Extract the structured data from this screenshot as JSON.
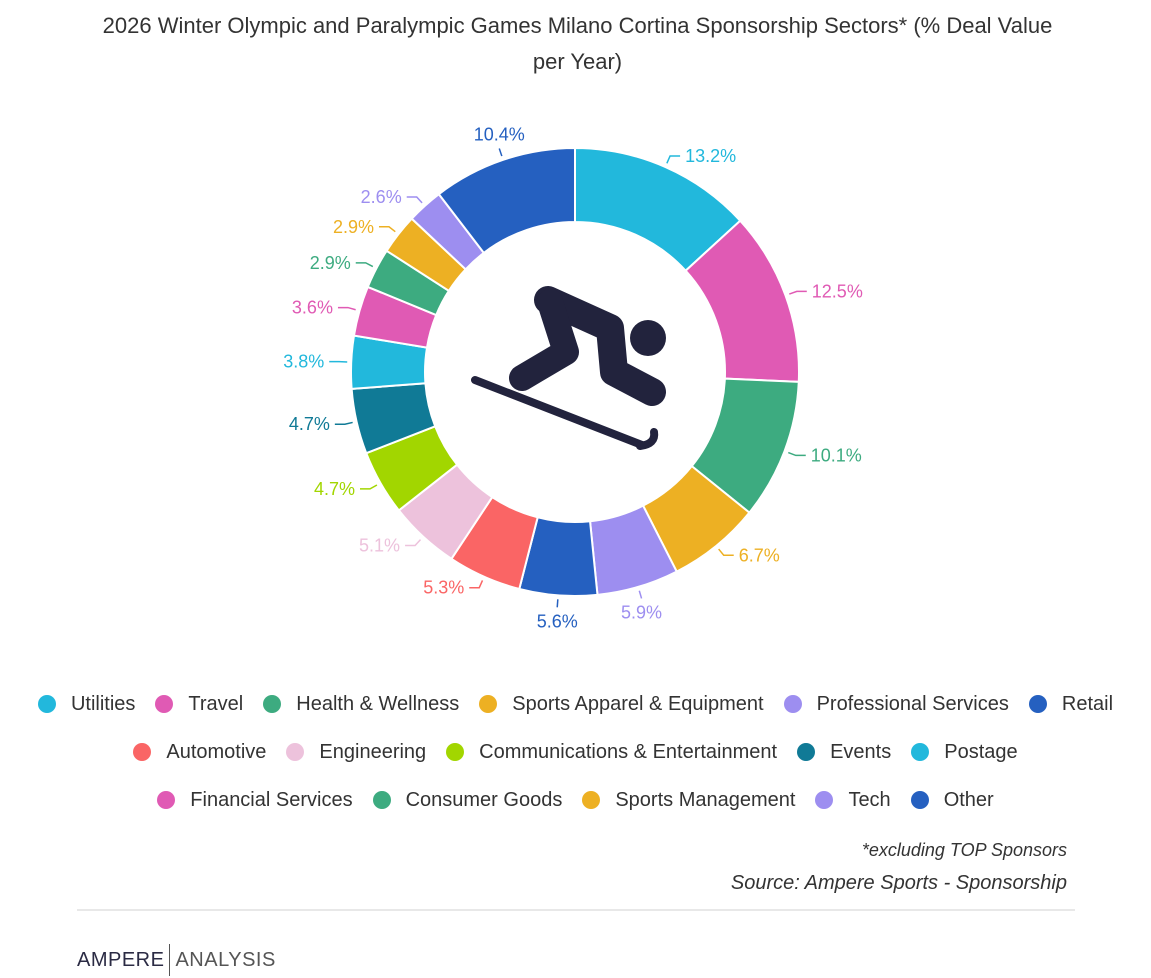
{
  "chart_data": {
    "type": "pie",
    "title": "2026 Winter Olympic and Paralympic Games Milano Cortina Sponsorship Sectors* (% Deal Value per Year)",
    "title_line1": "2026 Winter Olympic and Paralympic Games Milano Cortina Sponsorship Sectors* (% Deal Value",
    "title_line2": "per Year)",
    "center_icon": "skier-icon",
    "slices": [
      {
        "label": "Utilities",
        "value": 13.2,
        "display": "13.2%",
        "color": "#22b8dc"
      },
      {
        "label": "Travel",
        "value": 12.5,
        "display": "12.5%",
        "color": "#e05ab4"
      },
      {
        "label": "Health & Wellness",
        "value": 10.1,
        "display": "10.1%",
        "color": "#3dab80"
      },
      {
        "label": "Sports Apparel & Equipment",
        "value": 6.7,
        "display": "6.7%",
        "color": "#edb023"
      },
      {
        "label": "Professional Services",
        "value": 5.9,
        "display": "5.9%",
        "color": "#9d8ef0"
      },
      {
        "label": "Retail",
        "value": 5.6,
        "display": "5.6%",
        "color": "#2560c0"
      },
      {
        "label": "Automotive",
        "value": 5.3,
        "display": "5.3%",
        "color": "#fa6565"
      },
      {
        "label": "Engineering",
        "value": 5.1,
        "display": "5.1%",
        "color": "#edc2dc"
      },
      {
        "label": "Communications & Entertainment",
        "value": 4.7,
        "display": "4.7%",
        "color": "#a2d600"
      },
      {
        "label": "Events",
        "value": 4.7,
        "display": "4.7%",
        "color": "#107a96"
      },
      {
        "label": "Postage",
        "value": 3.8,
        "display": "3.8%",
        "color": "#22b8dc"
      },
      {
        "label": "Financial Services",
        "value": 3.6,
        "display": "3.6%",
        "color": "#e05ab4"
      },
      {
        "label": "Consumer Goods",
        "value": 2.9,
        "display": "2.9%",
        "color": "#3dab80"
      },
      {
        "label": "Sports Management",
        "value": 2.9,
        "display": "2.9%",
        "color": "#edb023"
      },
      {
        "label": "Tech",
        "value": 2.6,
        "display": "2.6%",
        "color": "#9d8ef0"
      },
      {
        "label": "Other",
        "value": 10.4,
        "display": "10.4%",
        "color": "#2560c0"
      }
    ],
    "legend_position": "bottom"
  },
  "footnote": "*excluding TOP Sponsors",
  "source": "Source: Ampere Sports - Sponsorship",
  "brand": {
    "part1": "AMPERE",
    "part2": "ANALYSIS"
  }
}
